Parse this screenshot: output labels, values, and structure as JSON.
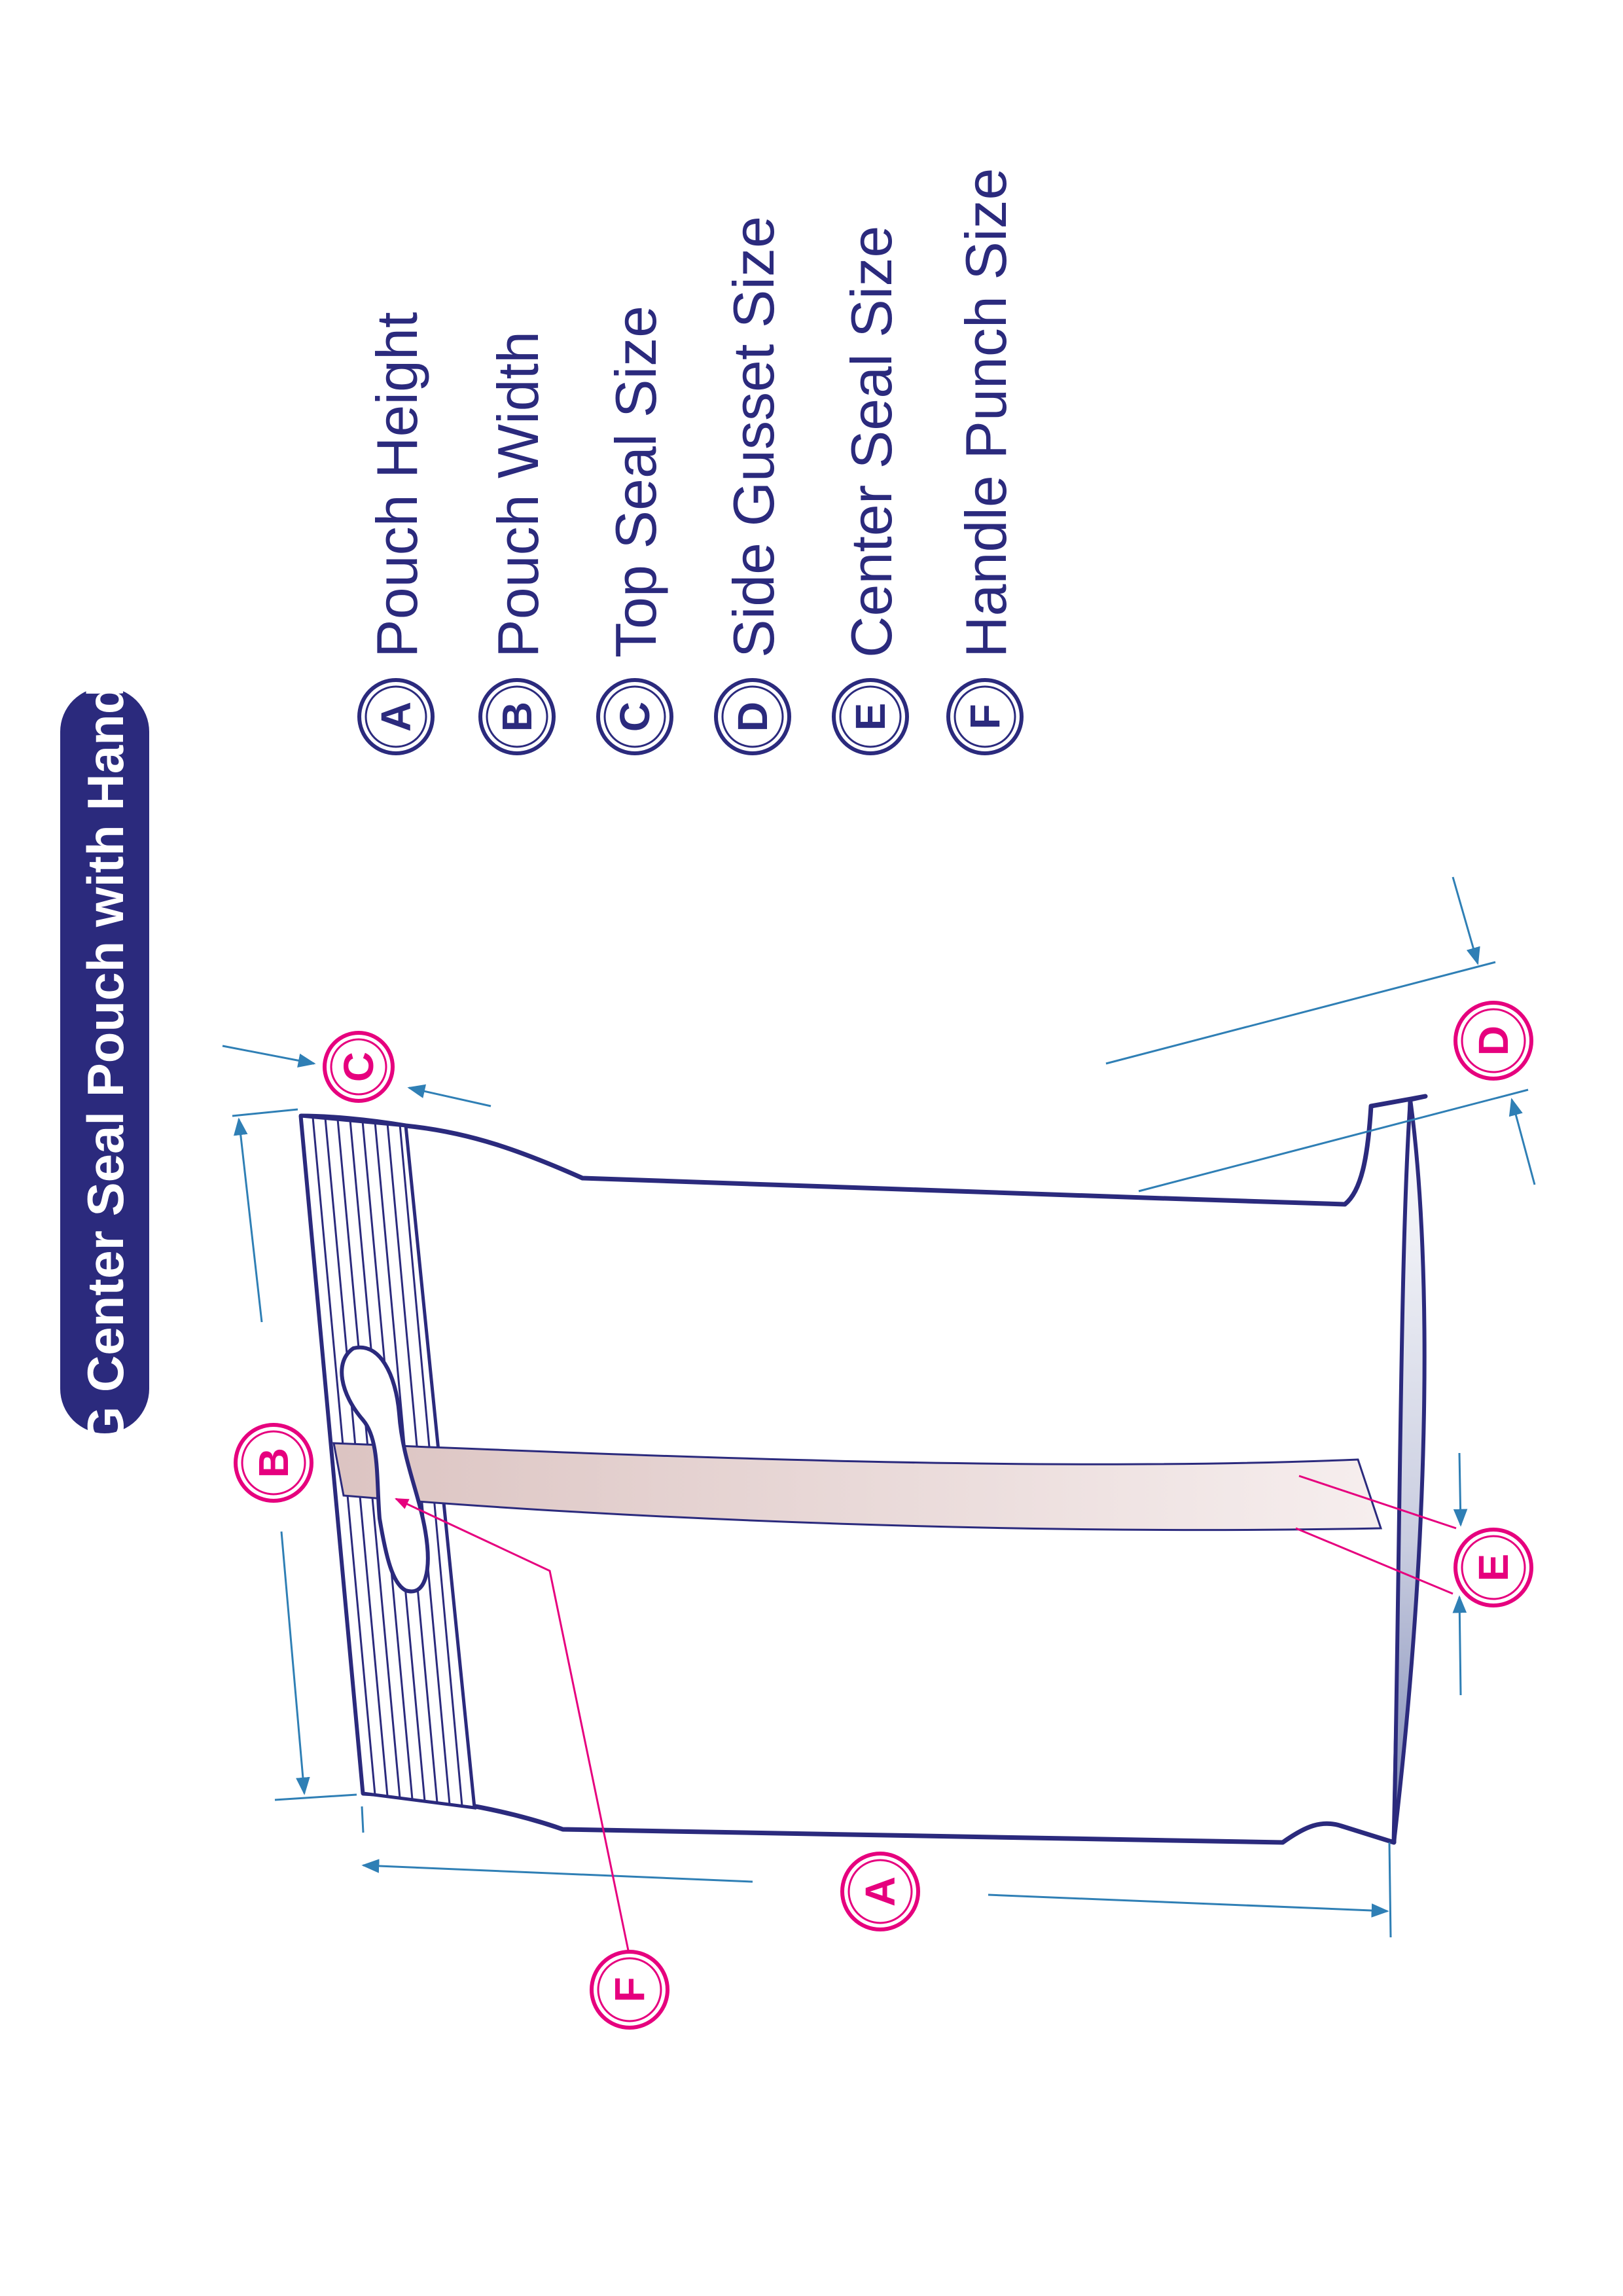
{
  "title": "SG Center Seal Pouch with Handle",
  "legend": [
    {
      "letter": "A",
      "label": "Pouch Height"
    },
    {
      "letter": "B",
      "label": "Pouch Width"
    },
    {
      "letter": "C",
      "label": "Top Seal Size"
    },
    {
      "letter": "D",
      "label": "Side Gusset Size"
    },
    {
      "letter": "E",
      "label": "Center Seal Size"
    },
    {
      "letter": "F",
      "label": "Handle Punch Size"
    }
  ],
  "markers": {
    "A": "A",
    "B": "B",
    "C": "C",
    "D": "D",
    "E": "E",
    "F": "F"
  },
  "colors": {
    "navy": "#2b2a7d",
    "magenta": "#e6007e",
    "dimension_blue": "#2f7fb5",
    "center_seal_fill": "#ead8d6",
    "bottom_gradient": "#7b87b4"
  }
}
